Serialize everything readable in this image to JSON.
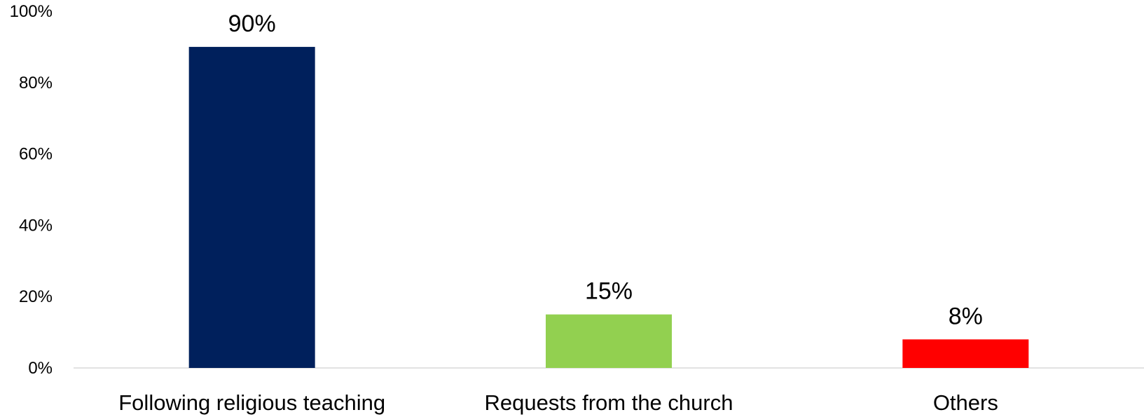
{
  "chart_data": {
    "type": "bar",
    "categories": [
      "Following religious teaching",
      "Requests from the church",
      "Others"
    ],
    "values": [
      90,
      15,
      8
    ],
    "value_labels": [
      "90%",
      "15%",
      "8%"
    ],
    "colors": [
      "#00205C",
      "#92D050",
      "#FF0000"
    ],
    "ylim": [
      0,
      100
    ],
    "yticks": [
      0,
      20,
      40,
      60,
      80,
      100
    ],
    "ytick_labels": [
      "0%",
      "20%",
      "40%",
      "60%",
      "80%",
      "100%"
    ],
    "title": "",
    "xlabel": "",
    "ylabel": "",
    "grid": false,
    "legend": "none"
  }
}
